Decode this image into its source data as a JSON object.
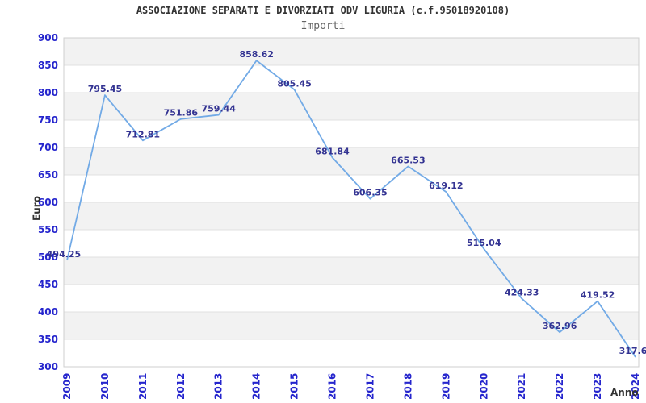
{
  "chart_data": {
    "type": "line",
    "title": "ASSOCIAZIONE SEPARATI E DIVORZIATI ODV LIGURIA (c.f.95018920108)",
    "subtitle": "Importi",
    "xlabel": "Anno",
    "ylabel": "Euro",
    "categories": [
      "2009",
      "2010",
      "2011",
      "2012",
      "2013",
      "2014",
      "2015",
      "2016",
      "2017",
      "2018",
      "2019",
      "2020",
      "2021",
      "2022",
      "2023",
      "2024"
    ],
    "values": [
      494.25,
      795.45,
      712.81,
      751.86,
      759.44,
      858.62,
      805.45,
      681.84,
      606.35,
      665.53,
      619.12,
      515.04,
      424.33,
      362.96,
      419.52,
      317.6
    ],
    "point_labels": [
      "494.25",
      "795.45",
      "712.81",
      "751.86",
      "759.44",
      "858.62",
      "805.45",
      "681.84",
      "606.35",
      "665.53",
      "619.12",
      "515.04",
      "424.33",
      "362.96",
      "419.52",
      "317.6"
    ],
    "ylim": [
      300,
      900
    ],
    "ytick_step": 50,
    "grid": "horizontal-lines-with-alternating-bands",
    "legend": "none",
    "colors": {
      "line": "#72aae6",
      "axis_tick": "#2525cd",
      "data_label": "#333392",
      "band": "#f2f2f2",
      "grid": "#e0e0e0",
      "border": "#cfcfcf",
      "title": "#333333",
      "subtitle": "#646464"
    }
  }
}
